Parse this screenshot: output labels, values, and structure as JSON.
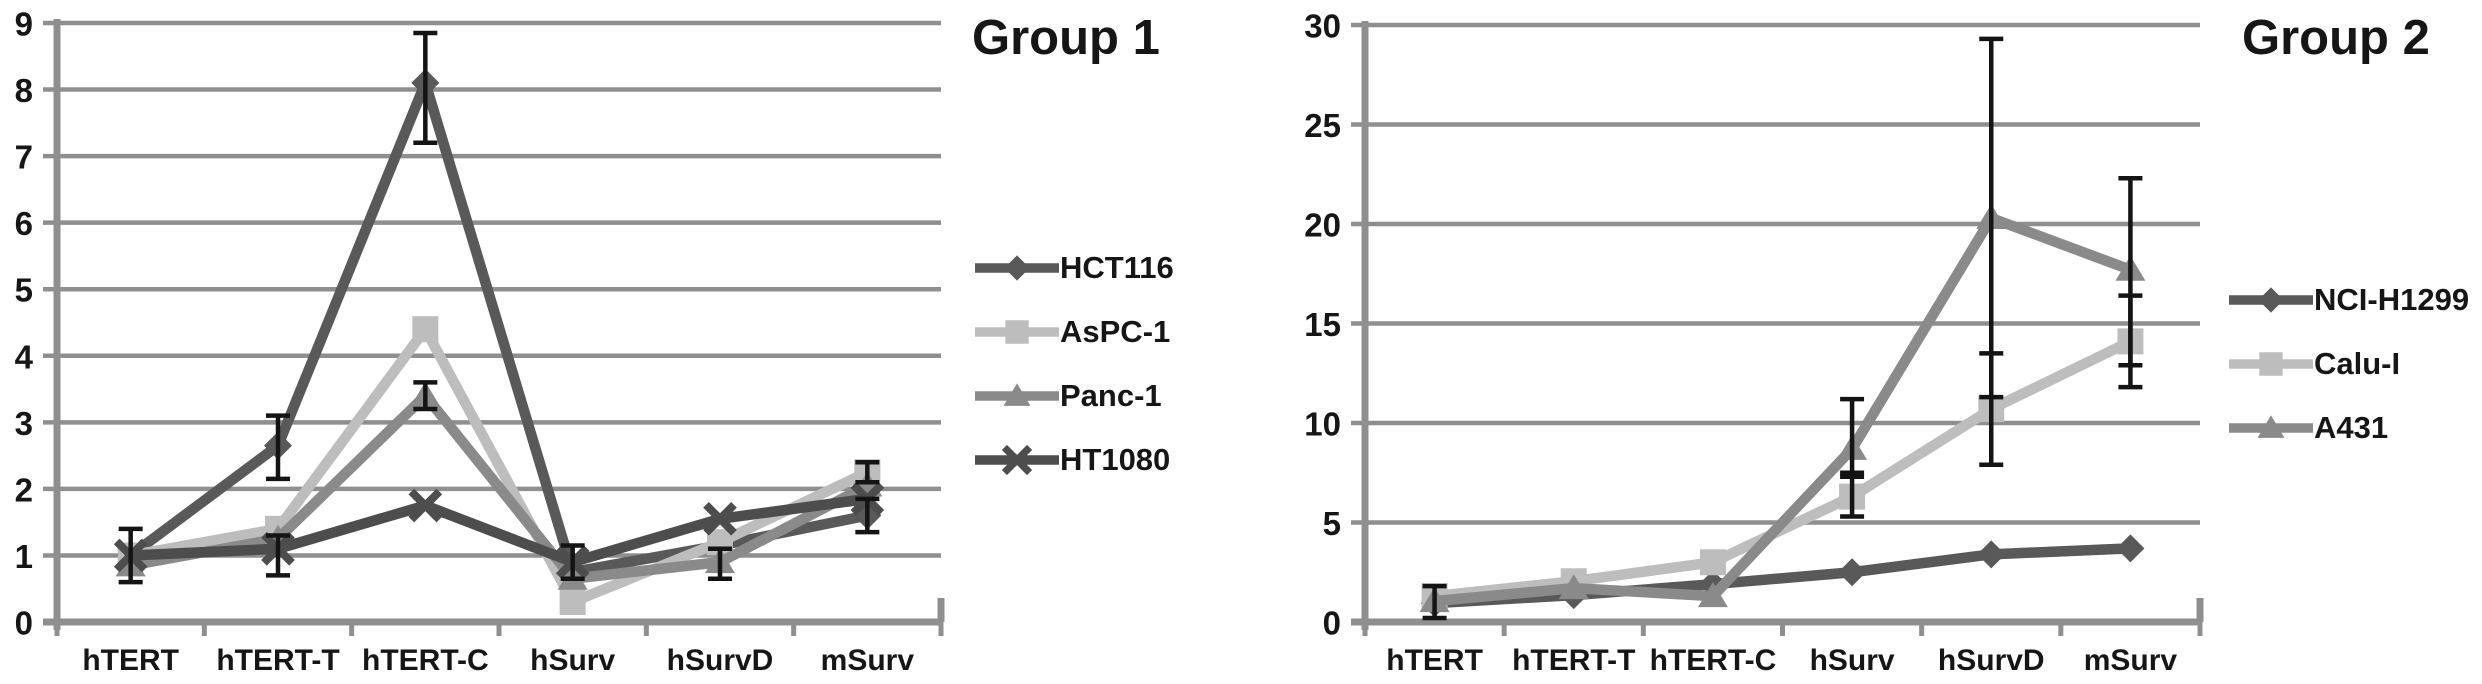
{
  "figure": {
    "background": "#ffffff",
    "text_color": "#161616",
    "grid_color": "#8f8f8f",
    "axis_color": "#8f8f8f",
    "error_bar_color": "#141414"
  },
  "chart_data": [
    {
      "type": "line",
      "title": "Group 1",
      "categories": [
        "hTERT",
        "hTERT-T",
        "hTERT-C",
        "hSurv",
        "hSurvD",
        "mSurv"
      ],
      "xlabel": "",
      "ylabel": "",
      "ylim": [
        0,
        9
      ],
      "yticks": [
        0,
        1,
        2,
        3,
        4,
        5,
        6,
        7,
        8,
        9
      ],
      "grid": true,
      "legend_position": "right",
      "series": [
        {
          "name": "HCT116",
          "marker": "diamond",
          "color": "#595959",
          "values": [
            1.0,
            2.65,
            8.1,
            0.75,
            1.15,
            1.6
          ],
          "error_low": [
            null,
            2.15,
            7.2,
            null,
            null,
            1.35
          ],
          "error_high": [
            null,
            3.1,
            8.85,
            null,
            null,
            1.85
          ]
        },
        {
          "name": "AsPC-1",
          "marker": "square",
          "color": "#bdbdbd",
          "values": [
            1.0,
            1.4,
            4.4,
            0.3,
            1.2,
            2.25
          ],
          "error_low": [
            null,
            null,
            null,
            null,
            null,
            2.1
          ],
          "error_high": [
            null,
            null,
            null,
            null,
            null,
            2.4
          ]
        },
        {
          "name": "Panc-1",
          "marker": "triangle",
          "color": "#8a8a8a",
          "values": [
            0.85,
            1.25,
            3.4,
            0.65,
            0.9,
            2.05
          ],
          "error_low": [
            null,
            null,
            3.2,
            null,
            0.65,
            null
          ],
          "error_high": [
            null,
            null,
            3.6,
            null,
            1.1,
            null
          ]
        },
        {
          "name": "HT1080",
          "marker": "x",
          "color": "#4d4d4d",
          "values": [
            1.0,
            1.1,
            1.75,
            0.9,
            1.55,
            1.85
          ],
          "error_low": [
            0.6,
            0.7,
            null,
            0.65,
            null,
            null
          ],
          "error_high": [
            1.4,
            1.3,
            null,
            1.15,
            null,
            null
          ]
        }
      ]
    },
    {
      "type": "line",
      "title": "Group 2",
      "categories": [
        "hTERT",
        "hTERT-T",
        "hTERT-C",
        "hSurv",
        "hSurvD",
        "mSurv"
      ],
      "xlabel": "",
      "ylabel": "",
      "ylim": [
        0,
        30
      ],
      "yticks": [
        0,
        5,
        10,
        15,
        20,
        25,
        30
      ],
      "grid": true,
      "legend_position": "right",
      "series": [
        {
          "name": "NCI-H1299",
          "marker": "diamond",
          "color": "#595959",
          "values": [
            0.95,
            1.35,
            1.9,
            2.5,
            3.4,
            3.7
          ],
          "error_low": [
            null,
            null,
            null,
            null,
            null,
            null
          ],
          "error_high": [
            null,
            null,
            null,
            null,
            null,
            null
          ]
        },
        {
          "name": "Calu-I",
          "marker": "square",
          "color": "#bdbdbd",
          "values": [
            1.3,
            2.05,
            3.0,
            6.3,
            10.7,
            14.1
          ],
          "error_low": [
            null,
            null,
            null,
            5.3,
            7.9,
            11.8
          ],
          "error_high": [
            null,
            null,
            null,
            7.5,
            13.5,
            16.4
          ]
        },
        {
          "name": "A431",
          "marker": "triangle",
          "color": "#8a8a8a",
          "values": [
            1.05,
            1.7,
            1.3,
            8.7,
            20.3,
            17.7
          ],
          "error_low": [
            0.2,
            null,
            null,
            7.3,
            11.3,
            12.9
          ],
          "error_high": [
            1.8,
            null,
            null,
            11.2,
            29.3,
            22.3
          ]
        }
      ]
    }
  ]
}
